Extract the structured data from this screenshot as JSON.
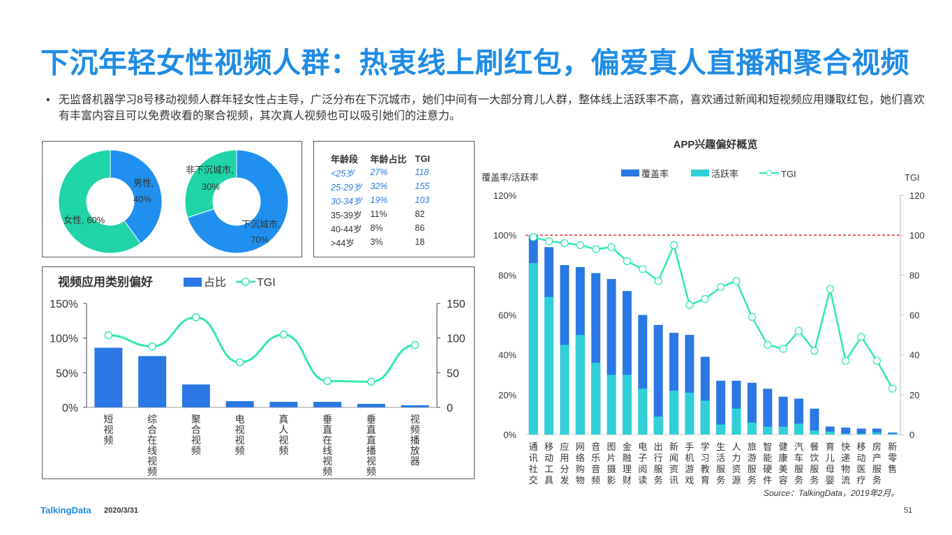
{
  "title": "下沉年轻女性视频人群：热衷线上刷红包，偏爱真人直播和聚合视频",
  "bullet": "无监督机器学习8号移动视频人群年轻女性占主导，广泛分布在下沉城市，她们中间有一大部分育儿人群，整体线上活跃率不高，喜欢通过新闻和短视频应用赚取红包，她们喜欢有丰富内容且可以免费收看的聚合视频，其次真人视频也可以吸引她们的注意力。",
  "colors": {
    "title": "#1f8ce6",
    "dark_blue": "#2b78e4",
    "teal": "#31d0d9",
    "green": "#32e8b0",
    "mint": "#1ed4a8",
    "blue": "#1f90f0",
    "red_dash": "#e83030"
  },
  "gender_donut": {
    "type": "pie",
    "slices": [
      {
        "label": "男性,",
        "value_label": "40%",
        "value": 40
      },
      {
        "label": "女性, 60%",
        "value": 60
      }
    ]
  },
  "city_donut": {
    "type": "pie",
    "slices": [
      {
        "label": "下沉城市,",
        "value_label": "70%",
        "value": 70
      },
      {
        "label": "非下沉城市,",
        "value_label": "30%",
        "value": 30
      }
    ]
  },
  "age_table": {
    "headers": [
      "年龄段",
      "年龄占比",
      "TGI"
    ],
    "rows": [
      [
        "<25岁",
        "27%",
        "118"
      ],
      [
        "25-29岁",
        "32%",
        "155"
      ],
      [
        "30-34岁",
        "19%",
        "103"
      ],
      [
        "35-39岁",
        "11%",
        "82"
      ],
      [
        "40-44岁",
        "8%",
        "86"
      ],
      [
        ">44岁",
        "3%",
        "18"
      ]
    ],
    "highlighted_rows": 3
  },
  "chart_data": [
    {
      "type": "bar",
      "title": "视频应用类别偏好",
      "legend": [
        "占比",
        "TGI"
      ],
      "legend_placement": "top",
      "categories": [
        "短视频",
        "综合在线视频",
        "聚合视频",
        "电视视频",
        "真人视频",
        "垂直在线视频",
        "垂直直播视频",
        "视频播放器"
      ],
      "series": [
        {
          "name": "占比",
          "type": "bar",
          "values": [
            86,
            74,
            33,
            9,
            8,
            8,
            5,
            3
          ]
        },
        {
          "name": "TGI",
          "type": "line",
          "values": [
            104,
            88,
            130,
            65,
            105,
            38,
            37,
            90
          ]
        }
      ],
      "ylim": [
        0,
        150
      ],
      "y_ticks": [
        "0%",
        "50%",
        "100%",
        "150%"
      ],
      "y2lim": [
        0,
        150
      ],
      "y2_ticks": [
        "0",
        "50",
        "100",
        "150"
      ]
    },
    {
      "type": "bar",
      "title": "APP兴趣偏好概览",
      "ylabel": "覆盖率/活跃率",
      "y2label": "TGI",
      "legend": [
        "覆盖率",
        "活跃率",
        "TGI"
      ],
      "legend_placement": "top",
      "categories": [
        "通讯社交",
        "移动工具",
        "应用分发",
        "网络购物",
        "音乐音频",
        "图片摄影",
        "金融理财",
        "电子阅读",
        "出行服务",
        "新闻资讯",
        "手机游戏",
        "学习教育",
        "生活服务",
        "人力资源",
        "旅游服务",
        "智能硬件",
        "健康美容",
        "汽车服务",
        "餐饮服务",
        "育儿母婴",
        "快递物流",
        "移动医疗",
        "房产服务",
        "新零售"
      ],
      "series": [
        {
          "name": "覆盖率",
          "type": "bar",
          "values": [
            100,
            94,
            85,
            84,
            81,
            78,
            72,
            60,
            55,
            51,
            50,
            39,
            27,
            27,
            26,
            23,
            19,
            18,
            13,
            4,
            3.5,
            3,
            3,
            1
          ]
        },
        {
          "name": "活跃率",
          "type": "bar",
          "values": [
            86,
            69,
            45,
            50,
            36,
            30,
            30,
            23,
            9,
            22,
            21,
            17,
            5,
            13,
            6,
            4,
            4,
            5.5,
            2,
            1.5,
            0.5,
            0.5,
            1,
            0.3
          ]
        },
        {
          "name": "TGI",
          "type": "line",
          "values": [
            99,
            97,
            96,
            95,
            93,
            94,
            87,
            83,
            77,
            95,
            65,
            68,
            74,
            77,
            59,
            45,
            43,
            52,
            42,
            73,
            37,
            49,
            37,
            23
          ]
        }
      ],
      "reference_line": 100,
      "ylim": [
        0,
        120
      ],
      "y_ticks": [
        "0%",
        "20%",
        "40%",
        "60%",
        "80%",
        "100%",
        "120%"
      ],
      "y2lim": [
        0,
        120
      ],
      "y2_ticks": [
        "0",
        "20",
        "40",
        "60",
        "80",
        "100",
        "120"
      ]
    }
  ],
  "source": "Source：TalkingData，2019年2月。",
  "footer": {
    "logo": "TalkingData",
    "date": "2020/3/31",
    "page": "51"
  }
}
